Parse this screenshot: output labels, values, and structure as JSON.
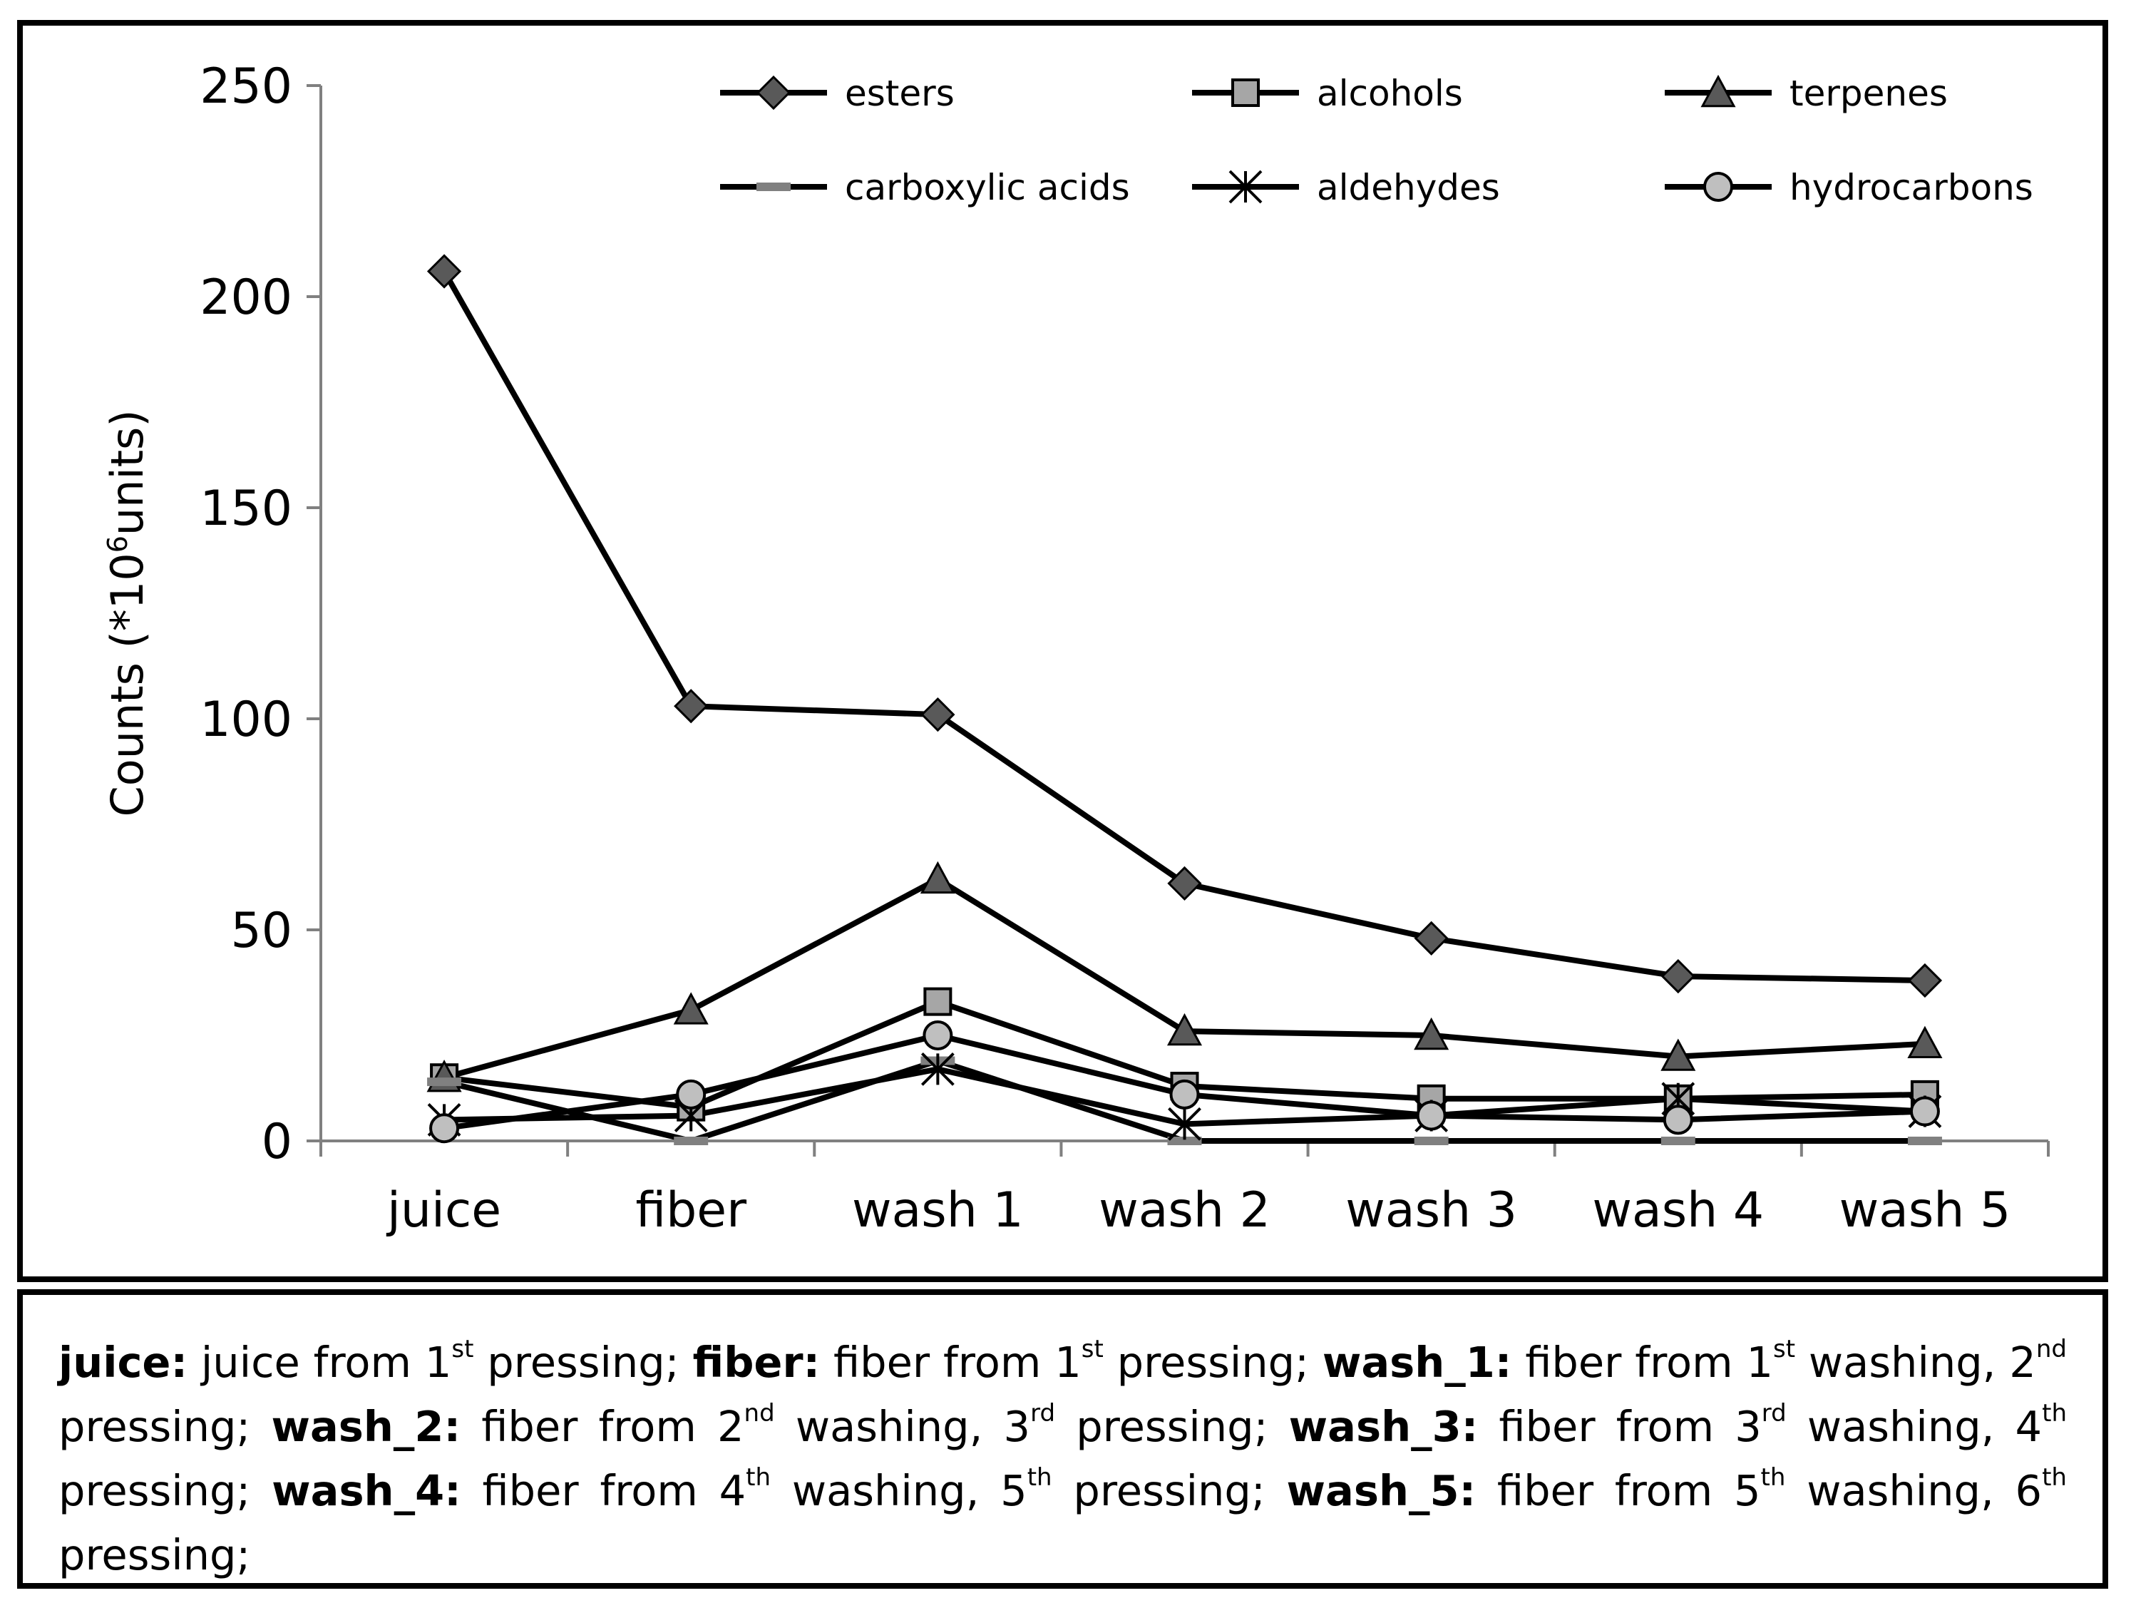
{
  "chart_data": {
    "type": "line",
    "title": "",
    "xlabel": "",
    "ylabel": "Counts (*10",
    "ylabel_sup": "6",
    "ylabel_end": "units)",
    "ylim": [
      0,
      250
    ],
    "yticks": [
      0,
      50,
      100,
      150,
      200,
      250
    ],
    "grid": false,
    "legend_position": "top",
    "categories": [
      "juice",
      "fiber",
      "wash 1",
      "wash 2",
      "wash 3",
      "wash 4",
      "wash 5"
    ],
    "series": [
      {
        "name": "esters",
        "marker": "diamond",
        "values": [
          206,
          103,
          101,
          61,
          48,
          39,
          38
        ]
      },
      {
        "name": "alcohols",
        "marker": "square",
        "values": [
          15,
          8,
          33,
          13,
          10,
          10,
          11
        ]
      },
      {
        "name": "terpenes",
        "marker": "triangle",
        "values": [
          15,
          31,
          62,
          26,
          25,
          20,
          23
        ]
      },
      {
        "name": "carboxylic acids",
        "marker": "dash",
        "values": [
          14,
          0,
          19,
          0,
          0,
          0,
          0
        ]
      },
      {
        "name": "aldehydes",
        "marker": "star",
        "values": [
          5,
          6,
          17,
          4,
          6,
          10,
          7
        ]
      },
      {
        "name": "hydrocarbons",
        "marker": "circle",
        "values": [
          3,
          11,
          25,
          11,
          6,
          5,
          7
        ]
      }
    ]
  },
  "caption": {
    "entries": [
      {
        "key": "juice:",
        "t1": "juice from 1",
        "s1": "st",
        "t2": "pressing;"
      },
      {
        "key": "fiber:",
        "t1": "fiber from 1",
        "s1": "st",
        "t2": "pressing;"
      },
      {
        "key": "wash_1:",
        "t1": "fiber from 1",
        "s1": "st",
        "t2": "washing, 2",
        "s2": "nd",
        "t3": "pressing;"
      },
      {
        "key": "wash_2:",
        "t1": "fiber from 2",
        "s1": "nd",
        "t2": "washing, 3",
        "s2": "rd",
        "t3": "pressing;"
      },
      {
        "key": "wash_3:",
        "t1": "fiber from 3",
        "s1": "rd",
        "t2": "washing, 4",
        "s2": "th",
        "t3": "pressing;"
      },
      {
        "key": "wash_4:",
        "t1": "fiber from 4",
        "s1": "th",
        "t2": "washing, 5",
        "s2": "th",
        "t3": "pressing;"
      },
      {
        "key": "wash_5:",
        "t1": "fiber from 5",
        "s1": "th",
        "t2": "washing, 6",
        "s2": "th",
        "t3": "pressing;"
      }
    ]
  },
  "colors": {
    "line": "#000000",
    "axis": "#808080",
    "esters_marker": "#595959",
    "alcohols_marker": "#a6a6a6",
    "terpenes_marker": "#595959",
    "carboxylic_marker": "#808080",
    "hydrocarbons_marker": "#bfbfbf"
  }
}
